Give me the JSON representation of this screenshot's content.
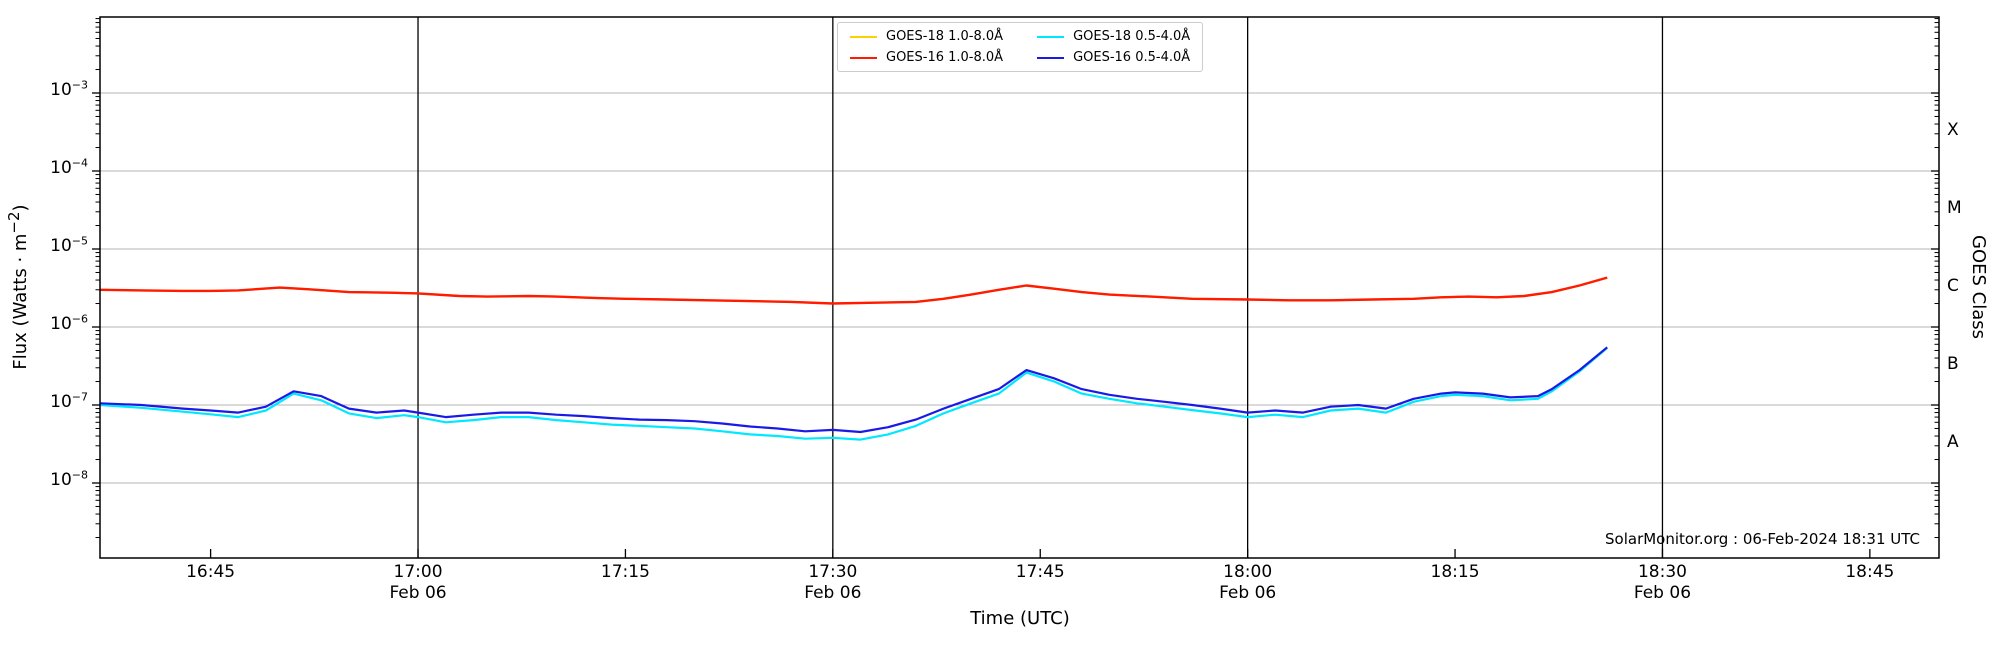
{
  "figure": {
    "xlabel": "Time (UTC)",
    "ylabel_left": {
      "prefix": "Flux (Watts · m",
      "sup": "−2",
      "suffix": ")"
    },
    "y_axis": {
      "tick_base": "10",
      "exponents": [
        "−3",
        "−4",
        "−5",
        "−6",
        "−7",
        "−8"
      ]
    },
    "x_ticks": [
      {
        "time": "16:45",
        "date": "",
        "gridline": false
      },
      {
        "time": "17:00",
        "date": "Feb 06",
        "gridline": true
      },
      {
        "time": "17:15",
        "date": "",
        "gridline": false
      },
      {
        "time": "17:30",
        "date": "Feb 06",
        "gridline": true
      },
      {
        "time": "17:45",
        "date": "",
        "gridline": false
      },
      {
        "time": "18:00",
        "date": "Feb 06",
        "gridline": true
      },
      {
        "time": "18:15",
        "date": "",
        "gridline": false
      },
      {
        "time": "18:30",
        "date": "Feb 06",
        "gridline": true
      },
      {
        "time": "18:45",
        "date": "",
        "gridline": false
      }
    ],
    "right_axis": {
      "title": "GOES Class",
      "labels": [
        {
          "label": "X",
          "log_center": -3.5
        },
        {
          "label": "M",
          "log_center": -4.5
        },
        {
          "label": "C",
          "log_center": -5.5
        },
        {
          "label": "B",
          "log_center": -6.5
        },
        {
          "label": "A",
          "log_center": -7.5
        }
      ]
    },
    "annotation": "SolarMonitor.org : 06-Feb-2024 18:31 UTC",
    "colors": {
      "grid_h": "#b4b4b4",
      "grid_v": "#000000",
      "spine": "#000000"
    }
  },
  "legend": {
    "items": [
      {
        "label": "GOES-18 1.0-8.0Å",
        "series": 0
      },
      {
        "label": "GOES-16 1.0-8.0Å",
        "series": 1
      },
      {
        "label": "GOES-18 0.5-4.0Å",
        "series": 2
      },
      {
        "label": "GOES-16 0.5-4.0Å",
        "series": 3
      }
    ]
  },
  "chart_data": {
    "type": "line",
    "title": "",
    "xlabel": "Time (UTC)",
    "ylabel": "Flux (Watts · m^-2)",
    "x_axis": {
      "start": "16:37",
      "end": "18:50",
      "scale": "time"
    },
    "y_axis": {
      "scale": "log",
      "min": 1e-09,
      "max": 0.01,
      "decade_labels": [
        0.001,
        0.0001,
        1e-05,
        1e-06,
        1e-07,
        1e-08
      ]
    },
    "grid": {
      "horizontal_at_decades": true,
      "vertical_at": [
        "17:00",
        "17:30",
        "18:00",
        "18:30"
      ]
    },
    "legend_position": "upper center",
    "series": [
      {
        "name": "GOES-18 1.0-8.0Å",
        "color": "#ffd000",
        "width": 2,
        "note": "hidden beneath GOES-16 1.0-8.0Å curve",
        "points_ref": 1
      },
      {
        "name": "GOES-16 1.0-8.0Å",
        "color": "#ff1a00",
        "width": 2.4,
        "points": [
          [
            "16:37",
            3e-06
          ],
          [
            "16:40",
            2.95e-06
          ],
          [
            "16:43",
            2.9e-06
          ],
          [
            "16:45",
            2.9e-06
          ],
          [
            "16:47",
            2.95e-06
          ],
          [
            "16:50",
            3.2e-06
          ],
          [
            "16:52",
            3.05e-06
          ],
          [
            "16:55",
            2.8e-06
          ],
          [
            "16:58",
            2.75e-06
          ],
          [
            "17:00",
            2.7e-06
          ],
          [
            "17:03",
            2.5e-06
          ],
          [
            "17:05",
            2.45e-06
          ],
          [
            "17:08",
            2.5e-06
          ],
          [
            "17:10",
            2.45e-06
          ],
          [
            "17:13",
            2.35e-06
          ],
          [
            "17:15",
            2.3e-06
          ],
          [
            "17:18",
            2.25e-06
          ],
          [
            "17:21",
            2.2e-06
          ],
          [
            "17:24",
            2.15e-06
          ],
          [
            "17:27",
            2.1e-06
          ],
          [
            "17:30",
            2e-06
          ],
          [
            "17:33",
            2.05e-06
          ],
          [
            "17:36",
            2.1e-06
          ],
          [
            "17:38",
            2.3e-06
          ],
          [
            "17:40",
            2.6e-06
          ],
          [
            "17:42",
            3e-06
          ],
          [
            "17:44",
            3.4e-06
          ],
          [
            "17:46",
            3.1e-06
          ],
          [
            "17:48",
            2.8e-06
          ],
          [
            "17:50",
            2.6e-06
          ],
          [
            "17:53",
            2.45e-06
          ],
          [
            "17:56",
            2.3e-06
          ],
          [
            "18:00",
            2.25e-06
          ],
          [
            "18:03",
            2.2e-06
          ],
          [
            "18:06",
            2.2e-06
          ],
          [
            "18:09",
            2.25e-06
          ],
          [
            "18:12",
            2.3e-06
          ],
          [
            "18:14",
            2.4e-06
          ],
          [
            "18:16",
            2.45e-06
          ],
          [
            "18:18",
            2.4e-06
          ],
          [
            "18:20",
            2.5e-06
          ],
          [
            "18:22",
            2.8e-06
          ],
          [
            "18:24",
            3.4e-06
          ],
          [
            "18:26",
            4.3e-06
          ]
        ]
      },
      {
        "name": "GOES-18 0.5-4.0Å",
        "color": "#00e8ff",
        "width": 2.2,
        "points": [
          [
            "16:37",
            1e-07
          ],
          [
            "16:40",
            9.2e-08
          ],
          [
            "16:43",
            8.2e-08
          ],
          [
            "16:45",
            7.6e-08
          ],
          [
            "16:47",
            7e-08
          ],
          [
            "16:49",
            8.5e-08
          ],
          [
            "16:51",
            1.4e-07
          ],
          [
            "16:53",
            1.15e-07
          ],
          [
            "16:55",
            7.8e-08
          ],
          [
            "16:57",
            6.8e-08
          ],
          [
            "16:59",
            7.4e-08
          ],
          [
            "17:00",
            7e-08
          ],
          [
            "17:02",
            6e-08
          ],
          [
            "17:04",
            6.4e-08
          ],
          [
            "17:06",
            7e-08
          ],
          [
            "17:08",
            7e-08
          ],
          [
            "17:10",
            6.4e-08
          ],
          [
            "17:12",
            6e-08
          ],
          [
            "17:14",
            5.6e-08
          ],
          [
            "17:16",
            5.4e-08
          ],
          [
            "17:18",
            5.2e-08
          ],
          [
            "17:20",
            5e-08
          ],
          [
            "17:22",
            4.6e-08
          ],
          [
            "17:24",
            4.2e-08
          ],
          [
            "17:26",
            4e-08
          ],
          [
            "17:28",
            3.7e-08
          ],
          [
            "17:30",
            3.8e-08
          ],
          [
            "17:32",
            3.6e-08
          ],
          [
            "17:34",
            4.2e-08
          ],
          [
            "17:36",
            5.4e-08
          ],
          [
            "17:38",
            7.8e-08
          ],
          [
            "17:40",
            1.05e-07
          ],
          [
            "17:42",
            1.4e-07
          ],
          [
            "17:44",
            2.6e-07
          ],
          [
            "17:46",
            2e-07
          ],
          [
            "17:48",
            1.4e-07
          ],
          [
            "17:50",
            1.2e-07
          ],
          [
            "17:52",
            1.05e-07
          ],
          [
            "17:54",
            9.5e-08
          ],
          [
            "17:56",
            8.6e-08
          ],
          [
            "17:58",
            7.8e-08
          ],
          [
            "18:00",
            7e-08
          ],
          [
            "18:02",
            7.5e-08
          ],
          [
            "18:04",
            7e-08
          ],
          [
            "18:06",
            8.5e-08
          ],
          [
            "18:08",
            9e-08
          ],
          [
            "18:10",
            8e-08
          ],
          [
            "18:12",
            1.1e-07
          ],
          [
            "18:14",
            1.3e-07
          ],
          [
            "18:15",
            1.35e-07
          ],
          [
            "18:17",
            1.3e-07
          ],
          [
            "18:19",
            1.15e-07
          ],
          [
            "18:21",
            1.2e-07
          ],
          [
            "18:22",
            1.5e-07
          ],
          [
            "18:24",
            2.7e-07
          ],
          [
            "18:26",
            5.4e-07
          ]
        ]
      },
      {
        "name": "GOES-16 0.5-4.0Å",
        "color": "#1a1ae6",
        "width": 2.2,
        "points": [
          [
            "16:37",
            1.05e-07
          ],
          [
            "16:40",
            1e-07
          ],
          [
            "16:43",
            9e-08
          ],
          [
            "16:45",
            8.5e-08
          ],
          [
            "16:47",
            8e-08
          ],
          [
            "16:49",
            9.5e-08
          ],
          [
            "16:51",
            1.5e-07
          ],
          [
            "16:53",
            1.3e-07
          ],
          [
            "16:55",
            9e-08
          ],
          [
            "16:57",
            8e-08
          ],
          [
            "16:59",
            8.5e-08
          ],
          [
            "17:00",
            8e-08
          ],
          [
            "17:02",
            7e-08
          ],
          [
            "17:04",
            7.5e-08
          ],
          [
            "17:06",
            8e-08
          ],
          [
            "17:08",
            8e-08
          ],
          [
            "17:10",
            7.5e-08
          ],
          [
            "17:12",
            7.2e-08
          ],
          [
            "17:14",
            6.8e-08
          ],
          [
            "17:16",
            6.5e-08
          ],
          [
            "17:18",
            6.4e-08
          ],
          [
            "17:20",
            6.2e-08
          ],
          [
            "17:22",
            5.8e-08
          ],
          [
            "17:24",
            5.3e-08
          ],
          [
            "17:26",
            5e-08
          ],
          [
            "17:28",
            4.6e-08
          ],
          [
            "17:30",
            4.8e-08
          ],
          [
            "17:32",
            4.5e-08
          ],
          [
            "17:34",
            5.2e-08
          ],
          [
            "17:36",
            6.5e-08
          ],
          [
            "17:38",
            9e-08
          ],
          [
            "17:40",
            1.2e-07
          ],
          [
            "17:42",
            1.6e-07
          ],
          [
            "17:44",
            2.8e-07
          ],
          [
            "17:46",
            2.2e-07
          ],
          [
            "17:48",
            1.6e-07
          ],
          [
            "17:50",
            1.35e-07
          ],
          [
            "17:52",
            1.2e-07
          ],
          [
            "17:54",
            1.1e-07
          ],
          [
            "17:56",
            1e-07
          ],
          [
            "17:58",
            9e-08
          ],
          [
            "18:00",
            8e-08
          ],
          [
            "18:02",
            8.5e-08
          ],
          [
            "18:04",
            8e-08
          ],
          [
            "18:06",
            9.5e-08
          ],
          [
            "18:08",
            1e-07
          ],
          [
            "18:10",
            9e-08
          ],
          [
            "18:12",
            1.2e-07
          ],
          [
            "18:14",
            1.4e-07
          ],
          [
            "18:15",
            1.45e-07
          ],
          [
            "18:17",
            1.4e-07
          ],
          [
            "18:19",
            1.25e-07
          ],
          [
            "18:21",
            1.3e-07
          ],
          [
            "18:22",
            1.6e-07
          ],
          [
            "18:24",
            2.8e-07
          ],
          [
            "18:26",
            5.5e-07
          ]
        ]
      }
    ]
  }
}
